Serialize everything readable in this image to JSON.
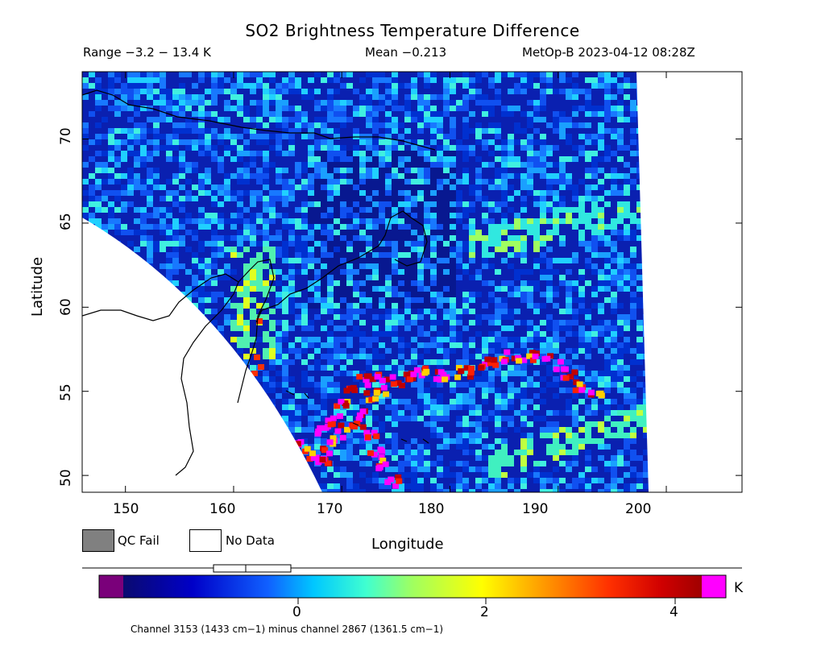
{
  "title": "SO2 Brightness Temperature Difference",
  "header": {
    "range": "Range −3.2 − 13.4 K",
    "mean": "Mean −0.213",
    "satellite": "MetOp-B 2023-04-12 08:28Z"
  },
  "axes": {
    "xlabel": "Longitude",
    "ylabel": "Latitude",
    "xticks": [
      "150",
      "160",
      "170",
      "180",
      "190",
      "200"
    ],
    "yticks": [
      "70",
      "65",
      "60",
      "55",
      "50"
    ],
    "xlim": [
      146,
      207
    ],
    "ylim": [
      49,
      74
    ]
  },
  "legend": {
    "qc_fail": "QC Fail",
    "no_data": "No Data",
    "qc_fail_color": "#808080",
    "no_data_color": "#ffffff"
  },
  "colorbar": {
    "ticks": [
      "0",
      "2",
      "4"
    ],
    "unit": "K",
    "low_color": "#7a007a",
    "high_color": "#ff00ff"
  },
  "footnote": "Channel 3153 (1433 cm−1) minus channel 2867 (1361.5 cm−1)"
}
